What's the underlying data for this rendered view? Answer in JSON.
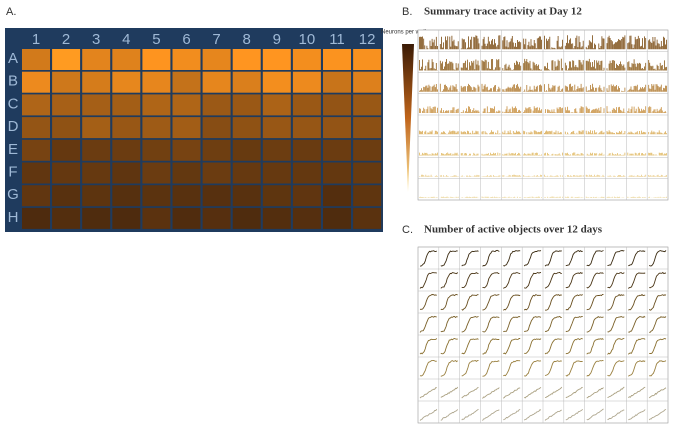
{
  "panels": [
    {
      "label": "A.",
      "columns": [
        "1",
        "2",
        "3",
        "4",
        "5",
        "6",
        "7",
        "8",
        "9",
        "10",
        "11",
        "12"
      ],
      "rows": [
        "A",
        "B",
        "C",
        "D",
        "E",
        "F",
        "G",
        "H"
      ]
    },
    {
      "label": "B.",
      "title": "Summary trace activity at Day 12",
      "legend_title": "Neurons per well"
    },
    {
      "label": "C.",
      "title": "Number of active objects over 12 days"
    }
  ]
}
